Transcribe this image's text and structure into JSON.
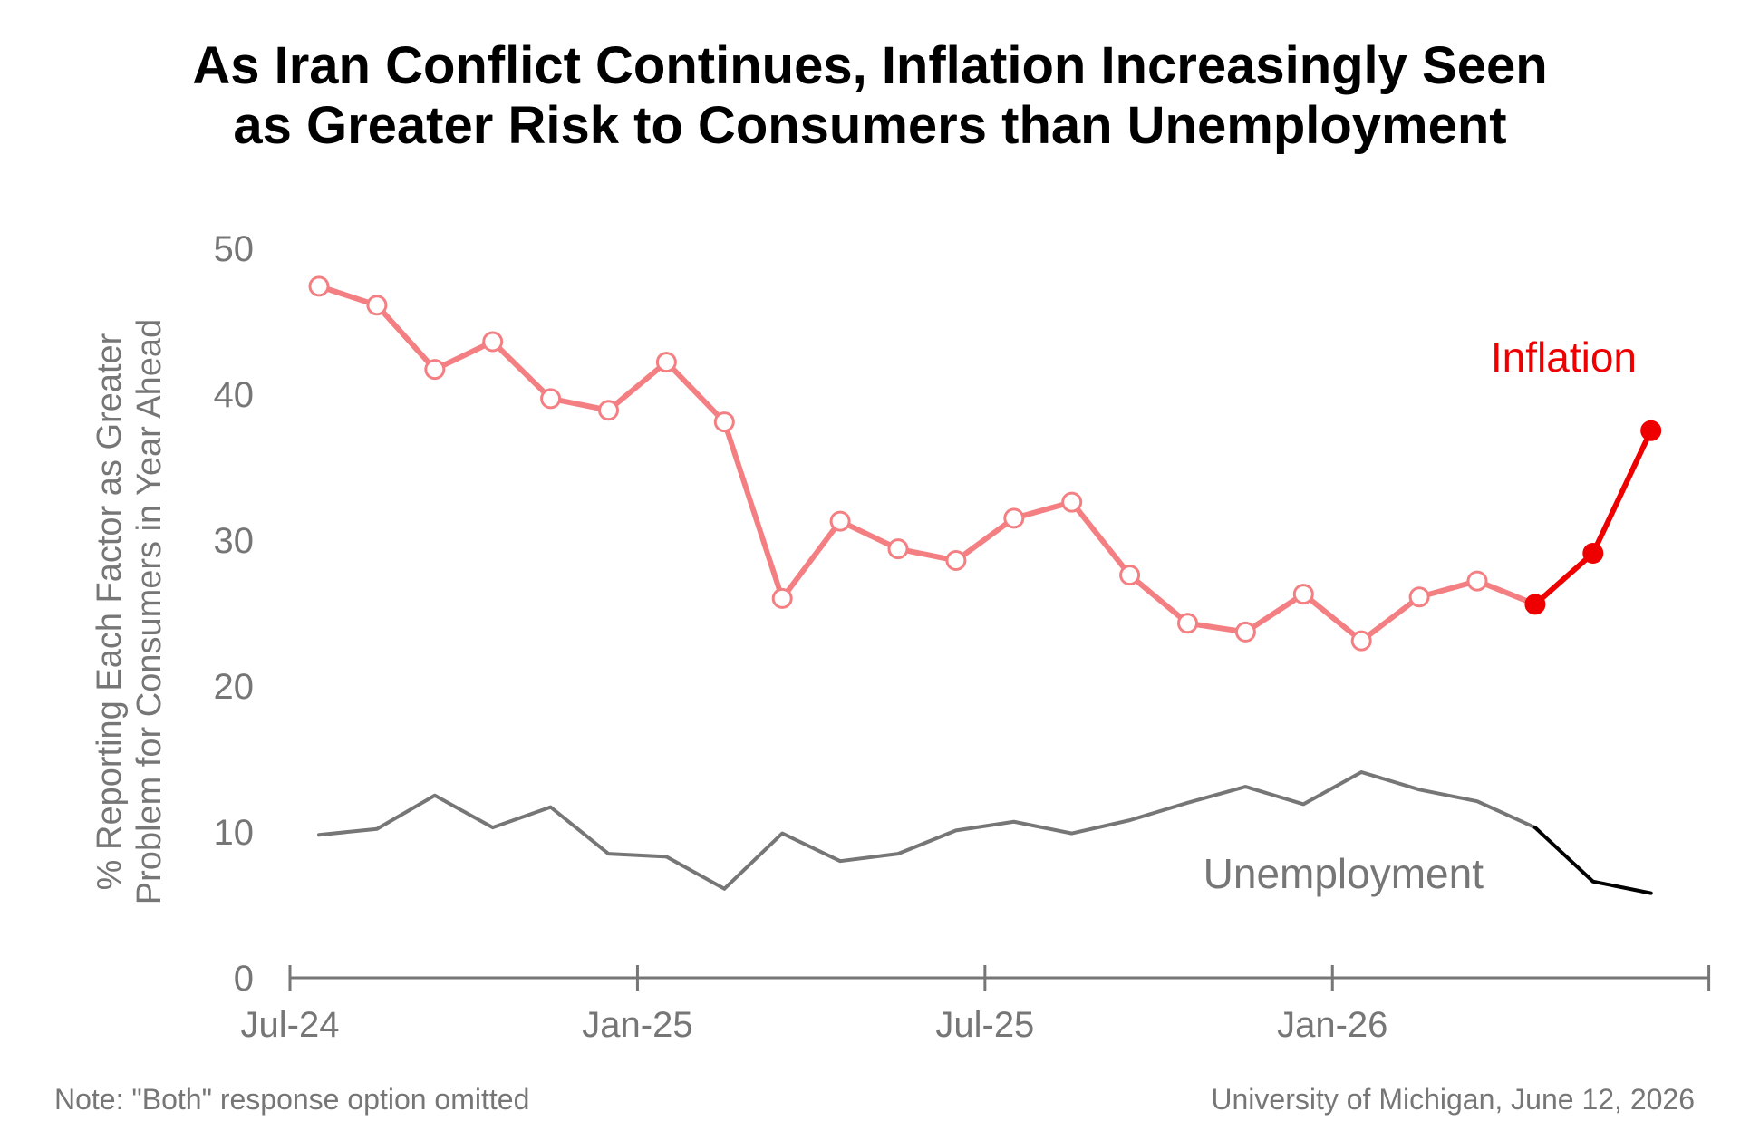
{
  "title": {
    "line1": "As Iran Conflict Continues, Inflation Increasingly Seen",
    "line2": "as Greater Risk to Consumers than Unemployment"
  },
  "y_axis_label": {
    "line1": "% Reporting Each Factor as Greater",
    "line2": "Problem for Consumers in Year Ahead"
  },
  "note": "Note: \"Both\" response option omitted",
  "source": "University of Michigan, June 12, 2026",
  "colors": {
    "inflation_faded": "#f47f82",
    "inflation_recent": "#ee0000",
    "inflation_label": "#ee0000",
    "unemployment_faded": "#767676",
    "unemployment_recent": "#000000",
    "unemployment_label": "#767676",
    "axis": "#767676"
  },
  "chart_data": {
    "type": "line",
    "x": [
      "2024-07",
      "2024-08",
      "2024-09",
      "2024-10",
      "2024-11",
      "2024-12",
      "2025-01",
      "2025-02",
      "2025-03",
      "2025-04",
      "2025-05",
      "2025-06",
      "2025-07",
      "2025-08",
      "2025-09",
      "2025-10",
      "2025-11",
      "2025-12",
      "2026-01",
      "2026-02",
      "2026-03",
      "2026-04",
      "2026-05",
      "2026-06"
    ],
    "x_ticks": [
      {
        "x": "2024-07",
        "label": "Jul-24"
      },
      {
        "x": "2025-01",
        "label": "Jan-25"
      },
      {
        "x": "2025-07",
        "label": "Jul-25"
      },
      {
        "x": "2026-01",
        "label": "Jan-26"
      }
    ],
    "x_axis_end": "2026-07",
    "y_ticks": [
      0,
      10,
      20,
      30,
      40,
      50
    ],
    "ylim": [
      0,
      50
    ],
    "series": [
      {
        "name": "Inflation",
        "values": [
          47.4,
          46.1,
          41.7,
          43.6,
          39.7,
          38.9,
          42.2,
          38.1,
          26.0,
          31.3,
          29.4,
          28.6,
          31.5,
          32.6,
          27.6,
          24.3,
          23.7,
          26.3,
          23.1,
          26.1,
          27.2,
          25.6,
          29.1,
          37.5
        ],
        "highlight_from": "2026-04",
        "label": "Inflation"
      },
      {
        "name": "Unemployment",
        "values": [
          9.8,
          10.2,
          12.5,
          10.3,
          11.7,
          8.5,
          8.3,
          6.1,
          9.9,
          8.0,
          8.5,
          10.1,
          10.7,
          9.9,
          10.8,
          12.0,
          13.1,
          11.9,
          14.1,
          12.9,
          12.1,
          10.3,
          6.6,
          5.8
        ],
        "highlight_from": "2026-04",
        "label": "Unemployment"
      }
    ],
    "grid": false,
    "legend": "direct labels"
  }
}
